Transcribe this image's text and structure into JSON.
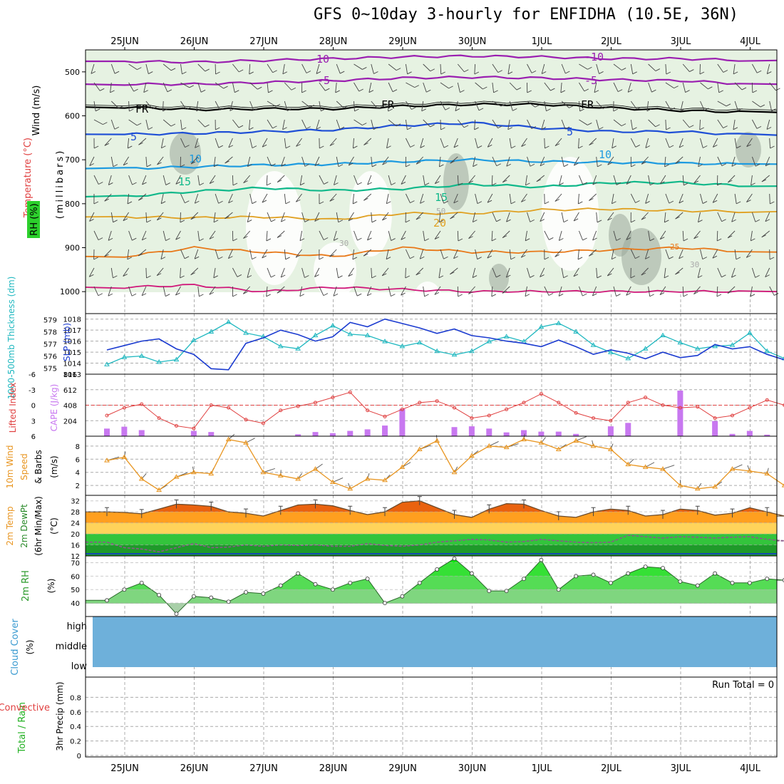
{
  "title": "GFS 0~10day 3-hourly for ENFIDHA (10.5E, 36N)",
  "date_labels": [
    "25JUN",
    "26JUN",
    "27JUN",
    "28JUN",
    "29JUN",
    "30JUN",
    "1JUL",
    "2JUL",
    "3JUL",
    "4JUL"
  ],
  "colors": {
    "purple": "#9a1fb0",
    "black": "#000000",
    "blue": "#1f4fd6",
    "skyblue": "#1e9be0",
    "green": "#10b88a",
    "gold": "#e0a020",
    "orange": "#e87818",
    "magenta": "#d0187a",
    "rh_fill": "#e6f2e2",
    "rh_dark": "#9aa89a",
    "barb": "#444444",
    "cyan": "#20b8c0",
    "navy": "#1b3bd0",
    "red": "#e04040",
    "violet": "#c878f0",
    "amber": "#e89520",
    "cloud": "#6eb0da",
    "rhgreen": "#2cd02c"
  },
  "panel_labels": {
    "upper_wind": "Wind (m/s)",
    "upper_temp": "Temperature (°C)",
    "upper_rh": "RH (%)",
    "upper_mb": "(millibars)",
    "thick": "1000-500mb Thickness (dm)",
    "slp": "SLP (mb)",
    "lifted": "Lifted Index",
    "cape": "CAPE (J/kg)",
    "wind10_a": "10m Wind",
    "wind10_b": "Speed",
    "wind10_c": "& Barbs",
    "wind10_unit": "(m/s)",
    "temp2_a": "2m Temp",
    "temp2_b": "2m DewPt",
    "temp2_c": "(6hr Min/Max)",
    "temp2_unit": "(°C)",
    "rh2": "2m RH",
    "rh2_unit": "(%)",
    "cloud": "Cloud Cover",
    "cloud_unit": "(%)",
    "precip_a": "Total / Rain",
    "precip_b": "Convective",
    "precip_c": "3hr Precip (mm)",
    "run_total": "Run Total = 0"
  },
  "cloud_levels": [
    "high",
    "middle",
    "low"
  ],
  "contour_labels": [
    "-10",
    "-10",
    "-5",
    "-5",
    "FR",
    "FR",
    "FR",
    "5",
    "5",
    "10",
    "10",
    "15",
    "15",
    "20",
    "25",
    "30",
    "30",
    "50"
  ],
  "ticks": {
    "pressure": [
      "500",
      "600",
      "700",
      "800",
      "900",
      "1000"
    ],
    "thick": [
      "579",
      "578",
      "577",
      "576",
      "575"
    ],
    "slp": [
      "1018",
      "1017",
      "1016",
      "1015",
      "1014",
      "1013"
    ],
    "li": [
      "-6",
      "-3",
      "0",
      "3",
      "6"
    ],
    "cape": [
      "816",
      "612",
      "408",
      "204"
    ],
    "wind": [
      "8",
      "6",
      "4",
      "2"
    ],
    "temp": [
      "32",
      "28",
      "24",
      "20",
      "16",
      "12"
    ],
    "rh": [
      "70",
      "60",
      "50",
      "40"
    ],
    "precip": [
      "0.8",
      "0.6",
      "0.4",
      "0.2",
      "0"
    ]
  },
  "chart_data": [
    {
      "type": "line",
      "title": "Wind (m/s), Temperature (°C), RH (%) vs pressure (millibars)",
      "x": [
        "25JUN",
        "26JUN",
        "27JUN",
        "28JUN",
        "29JUN",
        "30JUN",
        "1JUL",
        "2JUL",
        "3JUL",
        "4JUL"
      ],
      "ylabel": "(millibars)",
      "ylim": [
        1000,
        450
      ],
      "series": [
        {
          "name": "-10",
          "values": [
            476,
            478,
            474,
            470,
            466,
            464,
            466,
            470,
            470,
            474
          ]
        },
        {
          "name": "-5",
          "values": [
            528,
            528,
            524,
            520,
            514,
            512,
            514,
            518,
            520,
            528
          ]
        },
        {
          "name": "FR",
          "values": [
            580,
            586,
            584,
            584,
            578,
            574,
            574,
            582,
            588,
            592
          ]
        },
        {
          "name": "5",
          "values": [
            642,
            640,
            636,
            632,
            622,
            616,
            628,
            636,
            636,
            644
          ]
        },
        {
          "name": "10",
          "values": [
            720,
            716,
            712,
            710,
            704,
            700,
            704,
            706,
            708,
            710
          ]
        },
        {
          "name": "15",
          "values": [
            784,
            772,
            764,
            770,
            766,
            756,
            762,
            752,
            752,
            760
          ]
        },
        {
          "name": "20",
          "values": [
            830,
            832,
            830,
            836,
            822,
            822,
            814,
            812,
            816,
            818
          ]
        },
        {
          "name": "25",
          "values": [
            920,
            900,
            910,
            920,
            900,
            910,
            910,
            905,
            900,
            910
          ]
        },
        {
          "name": "30",
          "values": [
            990,
            985,
            1000,
            990,
            995,
            1000,
            1000,
            1000,
            1000,
            1000
          ]
        }
      ]
    },
    {
      "type": "line",
      "title": "1000-500mb Thickness (dm) and SLP (mb)",
      "x": [
        "24.5",
        "24.75",
        "25.0",
        "25.25",
        "25.5",
        "25.75",
        "26.0",
        "26.25",
        "26.5",
        "26.75",
        "27.0",
        "27.25",
        "27.5",
        "27.75",
        "28.0",
        "28.25",
        "28.5",
        "28.75",
        "29.0",
        "29.25",
        "29.5",
        "29.75",
        "30.0",
        "30.25",
        "30.5",
        "30.75",
        "31.0",
        "31.25",
        "31.5",
        "31.75",
        "32.0",
        "32.25",
        "32.5",
        "32.75",
        "33.0",
        "33.25",
        "33.5",
        "33.75",
        "34.0",
        "34.25"
      ],
      "series": [
        {
          "name": "1000-500mb Thickness (dm)",
          "ylim": [
            574.5,
            579.5
          ],
          "values": [
            575.3,
            575.9,
            576.0,
            575.5,
            575.7,
            577.3,
            578.0,
            578.8,
            577.9,
            577.6,
            576.8,
            576.6,
            577.7,
            578.5,
            577.8,
            577.7,
            577.2,
            576.8,
            577.1,
            576.4,
            576.1,
            576.4,
            577.2,
            577.6,
            577.2,
            578.4,
            578.7,
            578.0,
            576.9,
            576.3,
            575.8,
            576.6,
            577.7,
            577.1,
            576.6,
            576.8,
            576.9,
            577.9,
            576.4,
            575.8
          ]
        },
        {
          "name": "SLP (mb)",
          "ylim": [
            1013,
            1018.5
          ],
          "values": [
            1015.2,
            1015.6,
            1016.0,
            1016.2,
            1015.3,
            1014.8,
            1013.5,
            1013.4,
            1015.8,
            1016.3,
            1017.0,
            1016.6,
            1016.0,
            1016.4,
            1017.7,
            1017.3,
            1018.0,
            1017.6,
            1017.2,
            1016.7,
            1017.1,
            1016.5,
            1016.3,
            1016.0,
            1015.8,
            1015.5,
            1016.1,
            1015.5,
            1014.8,
            1015.2,
            1014.9,
            1014.4,
            1015.0,
            1014.5,
            1014.7,
            1015.7,
            1015.3,
            1015.5,
            1014.8,
            1014.3
          ]
        }
      ]
    },
    {
      "type": "bar",
      "title": "Lifted Index and CAPE (J/kg)",
      "x": [
        "24.5",
        "24.75",
        "25.0",
        "25.25",
        "25.5",
        "25.75",
        "26.0",
        "26.25",
        "26.5",
        "26.75",
        "27.0",
        "27.25",
        "27.5",
        "27.75",
        "28.0",
        "28.25",
        "28.5",
        "28.75",
        "29.0",
        "29.25",
        "29.5",
        "29.75",
        "30.0",
        "30.25",
        "30.5",
        "30.75",
        "31.0",
        "31.25",
        "31.5",
        "31.75",
        "32.0",
        "32.25",
        "32.5",
        "32.75",
        "33.0",
        "33.25",
        "33.5",
        "33.75",
        "34.0",
        "34.25"
      ],
      "series": [
        {
          "name": "Lifted Index",
          "ylim": [
            6,
            -6
          ],
          "values": [
            2.0,
            0.5,
            -0.2,
            2.5,
            4.0,
            4.5,
            0.0,
            0.5,
            2.8,
            3.5,
            1.0,
            0.2,
            -0.5,
            -1.5,
            -2.5,
            1.0,
            2.2,
            0.8,
            -0.5,
            -0.8,
            0.5,
            2.5,
            2.0,
            0.8,
            -0.5,
            -2.2,
            -0.5,
            1.5,
            2.5,
            3.0,
            -0.5,
            -1.5,
            0.0,
            0.5,
            0.3,
            2.5,
            2.0,
            0.5,
            -1.0,
            0.0
          ]
        },
        {
          "name": "CAPE (J/kg)",
          "ylim": [
            0,
            816
          ],
          "values": [
            100,
            125,
            80,
            0,
            0,
            70,
            55,
            0,
            0,
            0,
            0,
            25,
            55,
            40,
            70,
            90,
            140,
            360,
            0,
            0,
            120,
            130,
            100,
            50,
            80,
            60,
            60,
            30,
            0,
            130,
            175,
            0,
            0,
            600,
            0,
            200,
            30,
            70,
            20,
            0
          ]
        }
      ]
    },
    {
      "type": "line",
      "title": "10m Wind Speed & Barbs",
      "ylabel": "(m/s)",
      "ylim": [
        0.5,
        9.5
      ],
      "x": [
        "24.5",
        "24.75",
        "25.0",
        "25.25",
        "25.5",
        "25.75",
        "26.0",
        "26.25",
        "26.5",
        "26.75",
        "27.0",
        "27.25",
        "27.5",
        "27.75",
        "28.0",
        "28.25",
        "28.5",
        "28.75",
        "29.0",
        "29.25",
        "29.5",
        "29.75",
        "30.0",
        "30.25",
        "30.5",
        "30.75",
        "31.0",
        "31.25",
        "31.5",
        "31.75",
        "32.0",
        "32.25",
        "32.5",
        "32.75",
        "33.0",
        "33.25",
        "33.5",
        "33.75",
        "34.0",
        "34.25"
      ],
      "series": [
        {
          "name": "10m Wind Speed",
          "values": [
            5.8,
            6.3,
            3.0,
            1.3,
            3.3,
            4.0,
            3.8,
            9.0,
            8.5,
            4.0,
            3.5,
            3.0,
            4.5,
            2.5,
            1.5,
            3.0,
            2.8,
            4.8,
            7.5,
            8.8,
            4.0,
            6.5,
            8.0,
            7.8,
            9.0,
            8.5,
            7.5,
            8.8,
            8.0,
            7.5,
            5.2,
            4.8,
            4.5,
            2.0,
            1.5,
            1.8,
            4.5,
            4.2,
            3.8,
            2.0
          ]
        }
      ]
    },
    {
      "type": "area",
      "title": "2m Temp, 2m DewPt (6hr Min/Max)",
      "ylabel": "(°C)",
      "ylim": [
        12,
        34
      ],
      "x": [
        "24.5",
        "24.75",
        "25.0",
        "25.25",
        "25.5",
        "25.75",
        "26.0",
        "26.25",
        "26.5",
        "26.75",
        "27.0",
        "27.25",
        "27.5",
        "27.75",
        "28.0",
        "28.25",
        "28.5",
        "28.75",
        "29.0",
        "29.25",
        "29.5",
        "29.75",
        "30.0",
        "30.25",
        "30.5",
        "30.75",
        "31.0",
        "31.25",
        "31.5",
        "31.75",
        "32.0",
        "32.25",
        "32.5",
        "32.75",
        "33.0",
        "33.25",
        "33.5",
        "33.75",
        "34.0",
        "34.25"
      ],
      "series": [
        {
          "name": "2m Temp",
          "values": [
            28.0,
            27.8,
            27.3,
            29.0,
            30.8,
            30.5,
            30.0,
            28.0,
            27.5,
            26.5,
            28.5,
            30.5,
            30.8,
            30.2,
            28.5,
            27.0,
            28.0,
            31.5,
            32.0,
            29.5,
            27.0,
            26.0,
            29.0,
            31.0,
            30.8,
            28.5,
            26.5,
            26.0,
            28.0,
            29.0,
            28.5,
            26.5,
            27.0,
            29.0,
            28.5,
            26.8,
            27.5,
            29.5,
            28.0,
            26.5
          ]
        },
        {
          "name": "2m DewPt",
          "values": [
            17.0,
            15.0,
            14.5,
            13.5,
            15.0,
            16.5,
            15.0,
            15.2,
            16.0,
            15.5,
            16.0,
            15.8,
            16.0,
            15.5,
            15.5,
            16.5,
            15.8,
            15.5,
            16.0,
            17.0,
            17.5,
            18.0,
            17.8,
            17.0,
            17.2,
            18.0,
            17.5,
            17.0,
            16.8,
            17.0,
            19.5,
            19.0,
            18.5,
            19.0,
            18.8,
            18.5,
            18.8,
            19.0,
            18.0,
            17.5
          ]
        }
      ]
    },
    {
      "type": "area",
      "title": "2m RH",
      "ylabel": "(%)",
      "ylim": [
        30,
        75
      ],
      "x": [
        "24.5",
        "24.75",
        "25.0",
        "25.25",
        "25.5",
        "25.75",
        "26.0",
        "26.25",
        "26.5",
        "26.75",
        "27.0",
        "27.25",
        "27.5",
        "27.75",
        "28.0",
        "28.25",
        "28.5",
        "28.75",
        "29.0",
        "29.25",
        "29.5",
        "29.75",
        "30.0",
        "30.25",
        "30.5",
        "30.75",
        "31.0",
        "31.25",
        "31.5",
        "31.75",
        "32.0",
        "32.25",
        "32.5",
        "32.75",
        "33.0",
        "33.25",
        "33.5",
        "33.75",
        "34.0",
        "34.25"
      ],
      "series": [
        {
          "name": "2m RH",
          "values": [
            42,
            50,
            55,
            46,
            32,
            45,
            44,
            41,
            48,
            47,
            53,
            62,
            54,
            50,
            55,
            58,
            40,
            45,
            55,
            65,
            73,
            62,
            49,
            49,
            58,
            72,
            50,
            60,
            61,
            55,
            62,
            67,
            66,
            56,
            53,
            62,
            55,
            55,
            58,
            57
          ]
        }
      ]
    },
    {
      "type": "area",
      "title": "Cloud Cover",
      "ylabel": "(%)",
      "categories": [
        "high",
        "middle",
        "low"
      ],
      "values": [
        100,
        100,
        100
      ]
    },
    {
      "type": "bar",
      "title": "3hr Precip (mm)",
      "ylabel": "3hr Precip (mm)",
      "ylim": [
        0,
        1
      ],
      "series": [
        {
          "name": "Total / Rain",
          "values": [
            0,
            0,
            0,
            0,
            0,
            0,
            0,
            0,
            0,
            0
          ]
        },
        {
          "name": "Convective",
          "values": [
            0,
            0,
            0,
            0,
            0,
            0,
            0,
            0,
            0,
            0
          ]
        }
      ]
    }
  ]
}
